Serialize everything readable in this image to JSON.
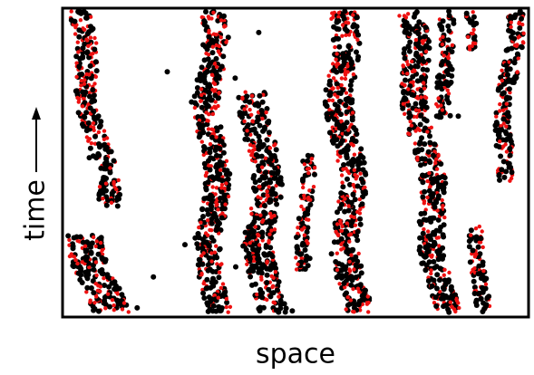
{
  "figure": {
    "y_label": "time",
    "x_label": "space"
  }
}
